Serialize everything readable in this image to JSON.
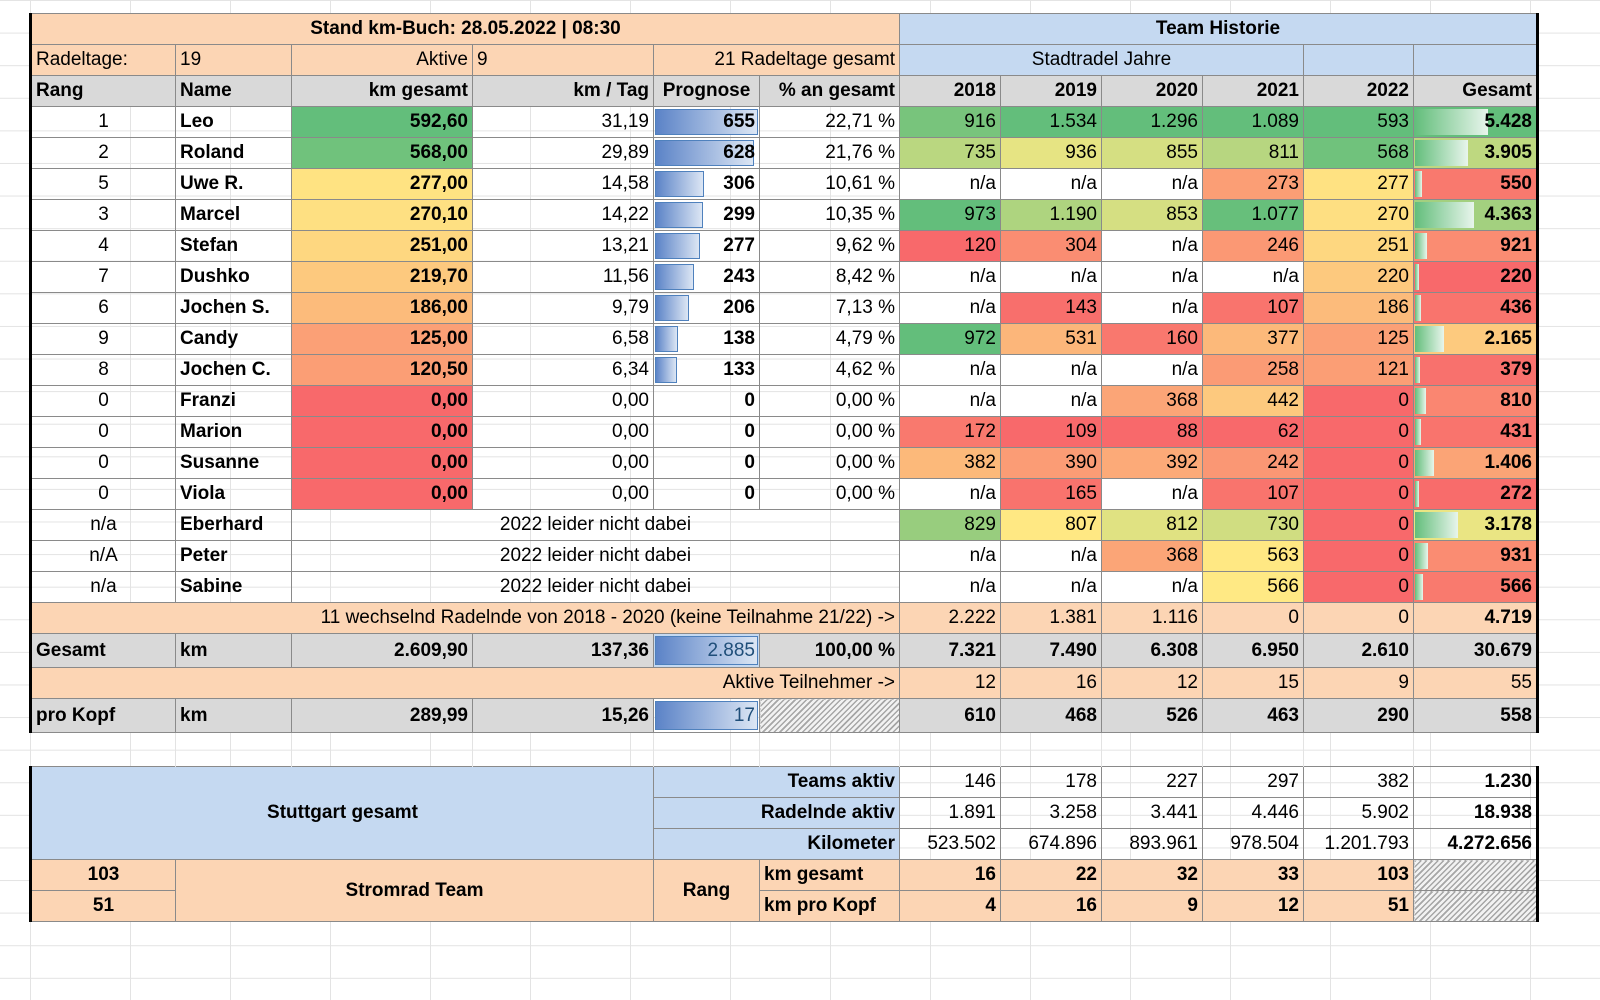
{
  "header": {
    "stand": "Stand km-Buch: 28.05.2022 | 08:30",
    "team_historie": "Team Historie",
    "radeltage_label": "Radeltage:",
    "radeltage_value": "19",
    "aktive_label": "Aktive",
    "aktive_value": "9",
    "radeltage_gesamt": "21 Radeltage gesamt",
    "stadtradel_jahre": "Stadtradel Jahre"
  },
  "columns": [
    "Rang",
    "Name",
    "km gesamt",
    "km / Tag",
    "Prognose",
    "% an gesamt",
    "2018",
    "2019",
    "2020",
    "2021",
    "2022",
    "Gesamt"
  ],
  "riders": [
    {
      "rang": "1",
      "name": "Leo",
      "km": "592,60",
      "kmtag": "31,19",
      "prognose": "655",
      "pct": "22,71 %",
      "y18": "916",
      "y19": "1.534",
      "y20": "1.296",
      "y21": "1.089",
      "y22": "593",
      "gesamt": "5.428"
    },
    {
      "rang": "2",
      "name": "Roland",
      "km": "568,00",
      "kmtag": "29,89",
      "prognose": "628",
      "pct": "21,76 %",
      "y18": "735",
      "y19": "936",
      "y20": "855",
      "y21": "811",
      "y22": "568",
      "gesamt": "3.905"
    },
    {
      "rang": "5",
      "name": "Uwe R.",
      "km": "277,00",
      "kmtag": "14,58",
      "prognose": "306",
      "pct": "10,61 %",
      "y18": "n/a",
      "y19": "n/a",
      "y20": "n/a",
      "y21": "273",
      "y22": "277",
      "gesamt": "550"
    },
    {
      "rang": "3",
      "name": "Marcel",
      "km": "270,10",
      "kmtag": "14,22",
      "prognose": "299",
      "pct": "10,35 %",
      "y18": "973",
      "y19": "1.190",
      "y20": "853",
      "y21": "1.077",
      "y22": "270",
      "gesamt": "4.363"
    },
    {
      "rang": "4",
      "name": "Stefan",
      "km": "251,00",
      "kmtag": "13,21",
      "prognose": "277",
      "pct": "9,62 %",
      "y18": "120",
      "y19": "304",
      "y20": "n/a",
      "y21": "246",
      "y22": "251",
      "gesamt": "921"
    },
    {
      "rang": "7",
      "name": "Dushko",
      "km": "219,70",
      "kmtag": "11,56",
      "prognose": "243",
      "pct": "8,42 %",
      "y18": "n/a",
      "y19": "n/a",
      "y20": "n/a",
      "y21": "n/a",
      "y22": "220",
      "gesamt": "220"
    },
    {
      "rang": "6",
      "name": "Jochen S.",
      "km": "186,00",
      "kmtag": "9,79",
      "prognose": "206",
      "pct": "7,13 %",
      "y18": "n/a",
      "y19": "143",
      "y20": "n/a",
      "y21": "107",
      "y22": "186",
      "gesamt": "436"
    },
    {
      "rang": "9",
      "name": "Candy",
      "km": "125,00",
      "kmtag": "6,58",
      "prognose": "138",
      "pct": "4,79 %",
      "y18": "972",
      "y19": "531",
      "y20": "160",
      "y21": "377",
      "y22": "125",
      "gesamt": "2.165"
    },
    {
      "rang": "8",
      "name": "Jochen C.",
      "km": "120,50",
      "kmtag": "6,34",
      "prognose": "133",
      "pct": "4,62 %",
      "y18": "n/a",
      "y19": "n/a",
      "y20": "n/a",
      "y21": "258",
      "y22": "121",
      "gesamt": "379"
    },
    {
      "rang": "0",
      "name": "Franzi",
      "km": "0,00",
      "kmtag": "0,00",
      "prognose": "0",
      "pct": "0,00 %",
      "y18": "n/a",
      "y19": "n/a",
      "y20": "368",
      "y21": "442",
      "y22": "0",
      "gesamt": "810"
    },
    {
      "rang": "0",
      "name": "Marion",
      "km": "0,00",
      "kmtag": "0,00",
      "prognose": "0",
      "pct": "0,00 %",
      "y18": "172",
      "y19": "109",
      "y20": "88",
      "y21": "62",
      "y22": "0",
      "gesamt": "431"
    },
    {
      "rang": "0",
      "name": "Susanne",
      "km": "0,00",
      "kmtag": "0,00",
      "prognose": "0",
      "pct": "0,00 %",
      "y18": "382",
      "y19": "390",
      "y20": "392",
      "y21": "242",
      "y22": "0",
      "gesamt": "1.406"
    },
    {
      "rang": "0",
      "name": "Viola",
      "km": "0,00",
      "kmtag": "0,00",
      "prognose": "0",
      "pct": "0,00 %",
      "y18": "n/a",
      "y19": "165",
      "y20": "n/a",
      "y21": "107",
      "y22": "0",
      "gesamt": "272"
    }
  ],
  "inactive": [
    {
      "rang": "n/a",
      "name": "Eberhard",
      "note": "2022 leider nicht dabei",
      "y18": "829",
      "y19": "807",
      "y20": "812",
      "y21": "730",
      "y22": "0",
      "gesamt": "3.178"
    },
    {
      "rang": "n/A",
      "name": "Peter",
      "note": "2022 leider nicht dabei",
      "y18": "n/a",
      "y19": "n/a",
      "y20": "368",
      "y21": "563",
      "y22": "0",
      "gesamt": "931"
    },
    {
      "rang": "n/a",
      "name": "Sabine",
      "note": "2022 leider nicht dabei",
      "y18": "n/a",
      "y19": "n/a",
      "y20": "n/a",
      "y21": "566",
      "y22": "0",
      "gesamt": "566"
    }
  ],
  "wechselnd": {
    "label": "11 wechselnd Radelnde von 2018 - 2020 (keine Teilnahme 21/22) ->",
    "y18": "2.222",
    "y19": "1.381",
    "y20": "1.116",
    "y21": "0",
    "y22": "0",
    "gesamt": "4.719"
  },
  "gesamt": {
    "label": "Gesamt",
    "unit": "km",
    "km": "2.609,90",
    "kmtag": "137,36",
    "prognose": "2.885",
    "pct": "100,00 %",
    "y18": "7.321",
    "y19": "7.490",
    "y20": "6.308",
    "y21": "6.950",
    "y22": "2.610",
    "total": "30.679"
  },
  "aktive_teilnehmer": {
    "label": "Aktive  Teilnehmer ->",
    "y18": "12",
    "y19": "16",
    "y20": "12",
    "y21": "15",
    "y22": "9",
    "total": "55"
  },
  "pro_kopf": {
    "label": "pro Kopf",
    "unit": "km",
    "km": "289,99",
    "kmtag": "15,26",
    "prognose": "17",
    "y18": "610",
    "y19": "468",
    "y20": "526",
    "y21": "463",
    "y22": "290",
    "total": "558"
  },
  "stuttgart": {
    "label": "Stuttgart gesamt",
    "rows": [
      {
        "label": "Teams aktiv",
        "y18": "146",
        "y19": "178",
        "y20": "227",
        "y21": "297",
        "y22": "382",
        "total": "1.230"
      },
      {
        "label": "Radelnde aktiv",
        "y18": "1.891",
        "y19": "3.258",
        "y20": "3.441",
        "y21": "4.446",
        "y22": "5.902",
        "total": "18.938"
      },
      {
        "label": "Kilometer",
        "y18": "523.502",
        "y19": "674.896",
        "y20": "893.961",
        "y21": "978.504",
        "y22": "1.201.793",
        "total": "4.272.656"
      }
    ]
  },
  "stromrad": {
    "label": "Stromrad Team",
    "rang_label": "Rang",
    "rank1": "103",
    "rank2": "51",
    "rows": [
      {
        "label": "km gesamt",
        "y18": "16",
        "y19": "22",
        "y20": "32",
        "y21": "33",
        "y22": "103"
      },
      {
        "label": "km pro Kopf",
        "y18": "4",
        "y19": "16",
        "y20": "9",
        "y21": "12",
        "y22": "51"
      }
    ]
  },
  "colors": {
    "peach": "#fcd5b4",
    "blue": "#c5d9f1",
    "grey": "#d9d9d9",
    "orange": "#e26b0a",
    "scale_red": "#f8696b",
    "scale_yellow": "#ffeb84",
    "scale_green": "#63be7b"
  },
  "bars": {
    "prognose_max": 655,
    "gesamt_max": 5428
  }
}
